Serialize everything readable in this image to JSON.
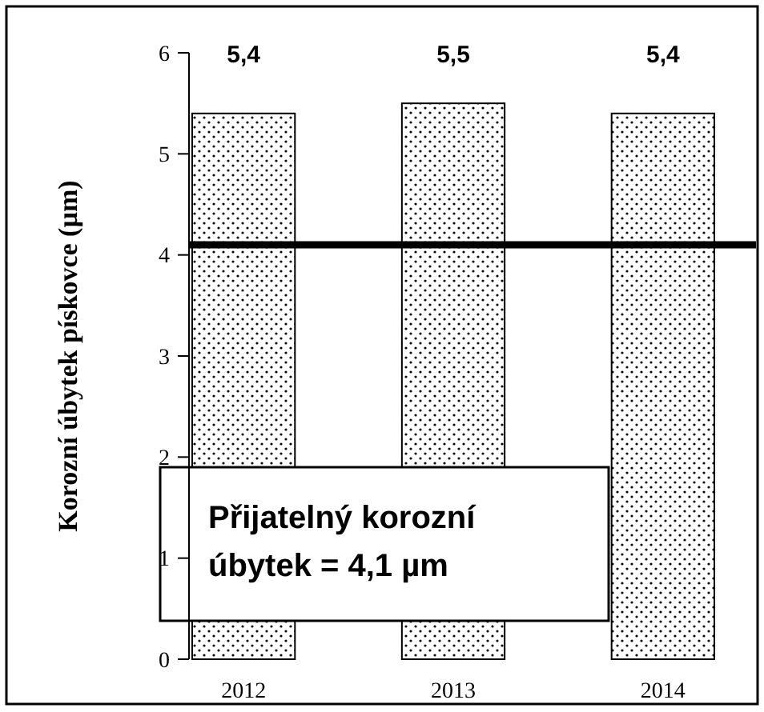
{
  "chart_data": {
    "type": "bar",
    "ylabel": "Korozní úbytek pískovce (µm)",
    "categories": [
      "2012",
      "2013",
      "2014"
    ],
    "values": [
      5.4,
      5.5,
      5.4
    ],
    "value_labels": [
      "5,4",
      "5,5",
      "5,4"
    ],
    "color": "#000000",
    "ylim": [
      0,
      6
    ],
    "yticks": [
      0,
      1,
      2,
      3,
      4,
      5,
      6
    ],
    "ref_lines": [
      {
        "axis": "y",
        "value": 4.1,
        "label": "Přijatelný korozní\núbytek = 4,1 µm",
        "color": "#000000",
        "line_style": "solid"
      }
    ]
  }
}
